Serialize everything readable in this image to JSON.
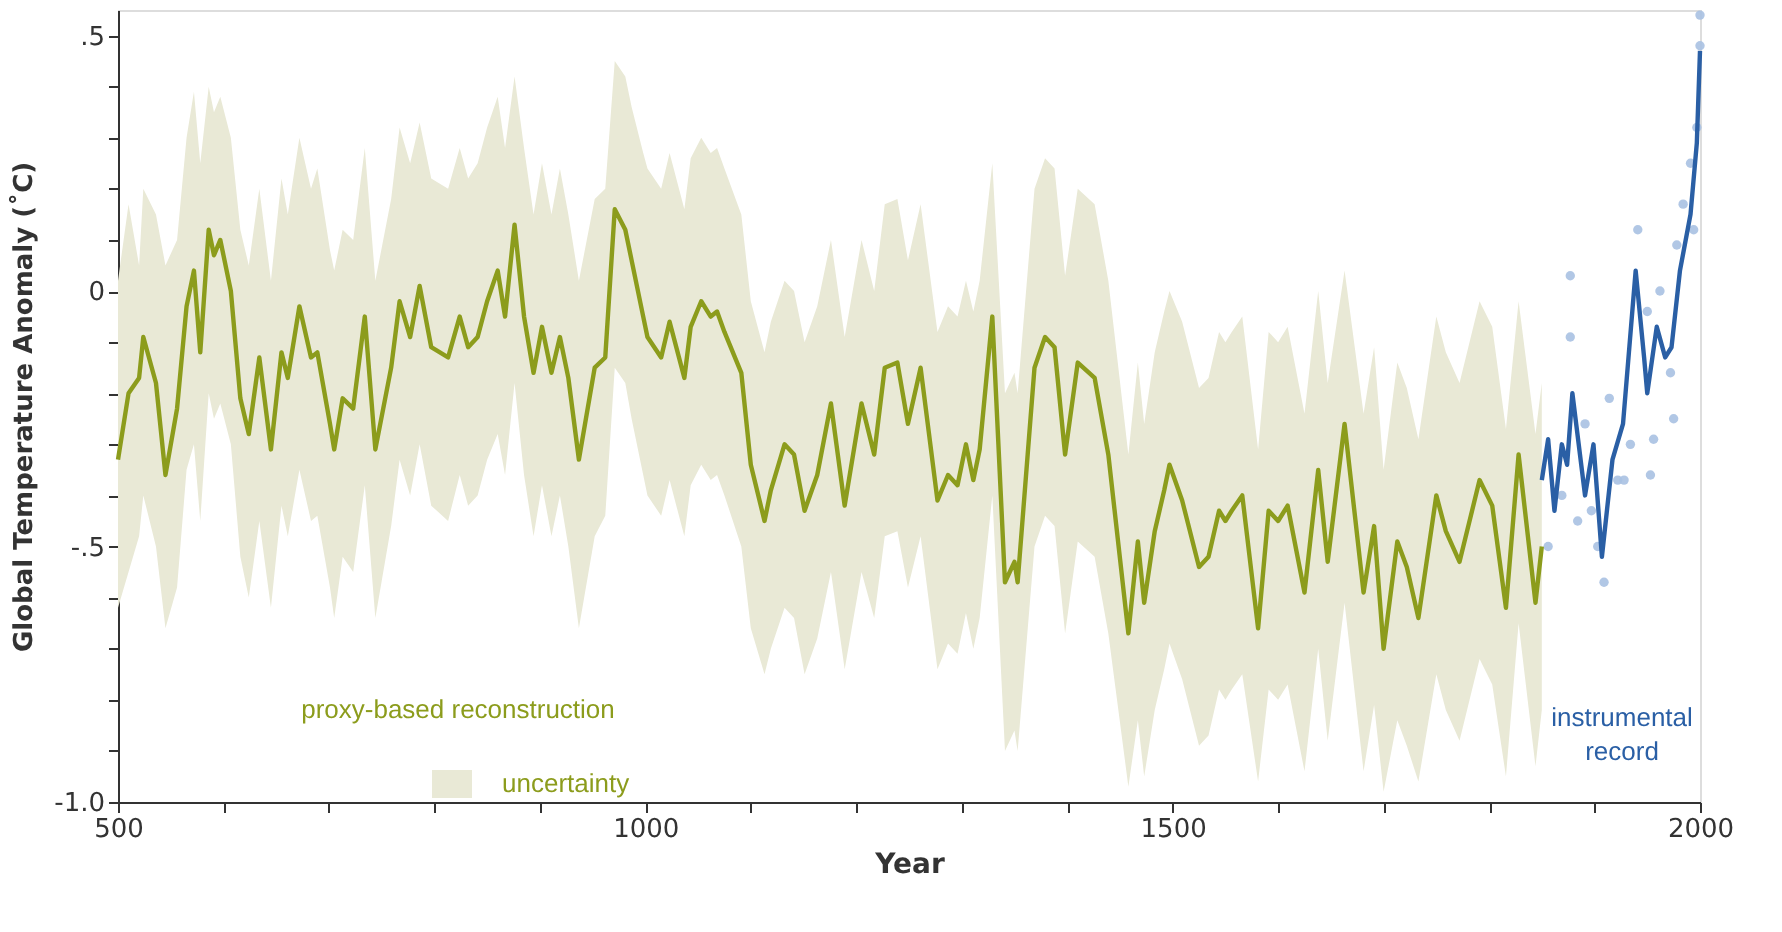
{
  "chart_data": {
    "type": "line",
    "xlabel": "Year",
    "ylabel": "Global Temperature Anomaly (˚C)",
    "xlim": [
      500,
      2000
    ],
    "ylim": [
      -1.0,
      0.55
    ],
    "xticks": [
      500,
      {
        "value": 600,
        "label": null
      },
      {
        "value": 700,
        "label": null
      },
      {
        "value": 800,
        "label": null
      },
      {
        "value": 900,
        "label": null
      },
      1000,
      {
        "value": 1100,
        "label": null
      },
      {
        "value": 1200,
        "label": null
      },
      {
        "value": 1300,
        "label": null
      },
      {
        "value": 1400,
        "label": null
      },
      1500,
      {
        "value": 1600,
        "label": null
      },
      {
        "value": 1700,
        "label": null
      },
      {
        "value": 1800,
        "label": null
      },
      {
        "value": 1900,
        "label": null
      },
      2000
    ],
    "yticks": [
      {
        "value": -1.0,
        "label": "-1.0"
      },
      {
        "value": -0.9,
        "label": null
      },
      {
        "value": -0.8,
        "label": null
      },
      {
        "value": -0.7,
        "label": null
      },
      {
        "value": -0.6,
        "label": null
      },
      {
        "value": -0.5,
        "label": "-.5"
      },
      {
        "value": -0.4,
        "label": null
      },
      {
        "value": -0.3,
        "label": null
      },
      {
        "value": -0.2,
        "label": null
      },
      {
        "value": -0.1,
        "label": null
      },
      0,
      {
        "value": 0.1,
        "label": null
      },
      {
        "value": 0.2,
        "label": null
      },
      {
        "value": 0.3,
        "label": null
      },
      {
        "value": 0.4,
        "label": null
      },
      {
        "value": 0.5,
        "label": ".5"
      }
    ],
    "grid": false,
    "legend": "bottom",
    "annotations": [
      "uncertainty"
    ],
    "series": [
      {
        "name": "proxy-based reconstruction",
        "color": "#8c9c1c",
        "x": [
          500,
          510,
          520,
          524,
          536,
          545,
          556,
          565,
          572,
          578,
          586,
          591,
          597,
          607,
          616,
          624,
          634,
          645,
          655,
          661,
          672,
          683,
          689,
          701,
          705,
          713,
          723,
          734,
          744,
          759,
          767,
          777,
          786,
          797,
          813,
          824,
          832,
          841,
          850,
          860,
          867,
          876,
          885,
          894,
          902,
          911,
          919,
          927,
          937,
          952,
          962,
          971,
          981,
          987,
          998,
          1002,
          1015,
          1023,
          1037,
          1043,
          1053,
          1062,
          1068,
          1075,
          1091,
          1100,
          1113,
          1119,
          1132,
          1141,
          1151,
          1163,
          1176,
          1189,
          1205,
          1217,
          1227,
          1239,
          1249,
          1261,
          1277,
          1287,
          1296,
          1304,
          1311,
          1317,
          1329,
          1341,
          1350,
          1353,
          1369,
          1379,
          1388,
          1398,
          1410,
          1426,
          1439,
          1458,
          1467,
          1473,
          1483,
          1492,
          1497,
          1509,
          1525,
          1534,
          1544,
          1550,
          1556,
          1566,
          1581,
          1591,
          1600,
          1609,
          1625,
          1638,
          1647,
          1663,
          1681,
          1691,
          1700,
          1713,
          1722,
          1733,
          1750,
          1759,
          1772,
          1791,
          1803,
          1816,
          1828,
          1844,
          1850
        ],
        "values": [
          -0.33,
          -0.2,
          -0.17,
          -0.09,
          -0.18,
          -0.36,
          -0.23,
          -0.03,
          0.04,
          -0.12,
          0.12,
          0.07,
          0.1,
          0.0,
          -0.21,
          -0.28,
          -0.13,
          -0.31,
          -0.12,
          -0.17,
          -0.03,
          -0.13,
          -0.12,
          -0.26,
          -0.31,
          -0.21,
          -0.23,
          -0.05,
          -0.31,
          -0.15,
          -0.02,
          -0.09,
          0.01,
          -0.11,
          -0.13,
          -0.05,
          -0.11,
          -0.09,
          -0.02,
          0.04,
          -0.05,
          0.13,
          -0.05,
          -0.16,
          -0.07,
          -0.16,
          -0.09,
          -0.17,
          -0.33,
          -0.15,
          -0.13,
          0.16,
          0.12,
          0.06,
          -0.05,
          -0.09,
          -0.13,
          -0.06,
          -0.17,
          -0.07,
          -0.02,
          -0.05,
          -0.04,
          -0.08,
          -0.16,
          -0.34,
          -0.45,
          -0.39,
          -0.3,
          -0.32,
          -0.43,
          -0.36,
          -0.22,
          -0.42,
          -0.22,
          -0.32,
          -0.15,
          -0.14,
          -0.26,
          -0.15,
          -0.41,
          -0.36,
          -0.38,
          -0.3,
          -0.37,
          -0.31,
          -0.05,
          -0.57,
          -0.53,
          -0.57,
          -0.15,
          -0.09,
          -0.11,
          -0.32,
          -0.14,
          -0.17,
          -0.32,
          -0.67,
          -0.49,
          -0.61,
          -0.47,
          -0.39,
          -0.34,
          -0.41,
          -0.54,
          -0.52,
          -0.43,
          -0.45,
          -0.43,
          -0.4,
          -0.66,
          -0.43,
          -0.45,
          -0.42,
          -0.59,
          -0.35,
          -0.53,
          -0.26,
          -0.59,
          -0.46,
          -0.7,
          -0.49,
          -0.54,
          -0.64,
          -0.4,
          -0.47,
          -0.53,
          -0.37,
          -0.42,
          -0.62,
          -0.32,
          -0.61,
          -0.5
        ],
        "upper": [
          0.02,
          0.17,
          0.05,
          0.2,
          0.15,
          0.05,
          0.1,
          0.3,
          0.39,
          0.25,
          0.4,
          0.35,
          0.38,
          0.3,
          0.12,
          0.05,
          0.2,
          0.02,
          0.22,
          0.15,
          0.3,
          0.2,
          0.24,
          0.08,
          0.04,
          0.12,
          0.1,
          0.28,
          0.02,
          0.18,
          0.32,
          0.25,
          0.33,
          0.22,
          0.2,
          0.28,
          0.22,
          0.25,
          0.32,
          0.38,
          0.28,
          0.42,
          0.28,
          0.15,
          0.25,
          0.15,
          0.24,
          0.15,
          0.02,
          0.18,
          0.2,
          0.45,
          0.42,
          0.36,
          0.27,
          0.24,
          0.2,
          0.27,
          0.16,
          0.26,
          0.3,
          0.27,
          0.28,
          0.24,
          0.15,
          -0.02,
          -0.12,
          -0.06,
          0.02,
          0.0,
          -0.1,
          -0.03,
          0.1,
          -0.09,
          0.1,
          0.0,
          0.17,
          0.18,
          0.06,
          0.17,
          -0.08,
          -0.03,
          -0.05,
          0.02,
          -0.04,
          0.02,
          0.25,
          -0.2,
          -0.16,
          -0.2,
          0.2,
          0.26,
          0.24,
          0.03,
          0.2,
          0.17,
          0.02,
          -0.32,
          -0.14,
          -0.26,
          -0.12,
          -0.04,
          0.0,
          -0.06,
          -0.19,
          -0.17,
          -0.08,
          -0.1,
          -0.08,
          -0.05,
          -0.31,
          -0.08,
          -0.1,
          -0.07,
          -0.24,
          0.0,
          -0.18,
          0.04,
          -0.24,
          -0.11,
          -0.35,
          -0.14,
          -0.19,
          -0.29,
          -0.05,
          -0.12,
          -0.18,
          -0.02,
          -0.07,
          -0.27,
          -0.02,
          -0.28,
          -0.18
        ],
        "lower": [
          -0.62,
          -0.55,
          -0.48,
          -0.4,
          -0.5,
          -0.66,
          -0.58,
          -0.35,
          -0.3,
          -0.45,
          -0.2,
          -0.25,
          -0.22,
          -0.3,
          -0.52,
          -0.6,
          -0.45,
          -0.62,
          -0.42,
          -0.48,
          -0.35,
          -0.45,
          -0.44,
          -0.58,
          -0.64,
          -0.52,
          -0.55,
          -0.38,
          -0.64,
          -0.46,
          -0.33,
          -0.4,
          -0.3,
          -0.42,
          -0.45,
          -0.36,
          -0.42,
          -0.4,
          -0.33,
          -0.28,
          -0.36,
          -0.18,
          -0.36,
          -0.48,
          -0.38,
          -0.48,
          -0.4,
          -0.5,
          -0.66,
          -0.48,
          -0.44,
          -0.15,
          -0.18,
          -0.25,
          -0.36,
          -0.4,
          -0.44,
          -0.37,
          -0.48,
          -0.38,
          -0.34,
          -0.37,
          -0.36,
          -0.4,
          -0.5,
          -0.66,
          -0.75,
          -0.7,
          -0.62,
          -0.64,
          -0.75,
          -0.68,
          -0.55,
          -0.74,
          -0.55,
          -0.64,
          -0.48,
          -0.47,
          -0.58,
          -0.48,
          -0.74,
          -0.69,
          -0.71,
          -0.63,
          -0.7,
          -0.64,
          -0.4,
          -0.9,
          -0.86,
          -0.9,
          -0.5,
          -0.44,
          -0.46,
          -0.67,
          -0.49,
          -0.52,
          -0.67,
          -0.97,
          -0.84,
          -0.95,
          -0.82,
          -0.74,
          -0.69,
          -0.76,
          -0.89,
          -0.87,
          -0.78,
          -0.8,
          -0.78,
          -0.75,
          -0.96,
          -0.78,
          -0.8,
          -0.77,
          -0.94,
          -0.7,
          -0.88,
          -0.61,
          -0.94,
          -0.81,
          -0.98,
          -0.84,
          -0.89,
          -0.96,
          -0.75,
          -0.82,
          -0.88,
          -0.72,
          -0.77,
          -0.95,
          -0.65,
          -0.93,
          -0.82
        ]
      },
      {
        "type": "scatter",
        "color": "#a9c1e2",
        "marker": "circle",
        "x": [
          1856,
          1869,
          1877,
          1877,
          1884,
          1891,
          1897,
          1903,
          1909,
          1914,
          1922,
          1928,
          1934,
          1941,
          1950,
          1953,
          1956,
          1962,
          1972,
          1975,
          1978,
          1984,
          1991,
          1994,
          1997,
          2000,
          2000
        ],
        "values": [
          -0.5,
          -0.4,
          0.03,
          -0.09,
          -0.45,
          -0.26,
          -0.43,
          -0.5,
          -0.57,
          -0.21,
          -0.37,
          -0.37,
          -0.3,
          0.12,
          -0.04,
          -0.36,
          -0.29,
          0.0,
          -0.16,
          -0.25,
          0.09,
          0.17,
          0.25,
          0.12,
          0.32,
          0.48,
          0.54
        ]
      },
      {
        "name": "instrumental record",
        "color": "#2a5fa5",
        "x": [
          1850,
          1856,
          1862,
          1869,
          1874,
          1879,
          1891,
          1899,
          1907,
          1917,
          1927,
          1939,
          1947,
          1950,
          1959,
          1967,
          1973,
          1981,
          1991,
          1997,
          2000
        ],
        "values": [
          -0.37,
          -0.29,
          -0.43,
          -0.3,
          -0.34,
          -0.2,
          -0.4,
          -0.3,
          -0.52,
          -0.33,
          -0.26,
          0.04,
          -0.13,
          -0.2,
          -0.07,
          -0.13,
          -0.11,
          0.04,
          0.15,
          0.29,
          0.47
        ]
      }
    ]
  }
}
